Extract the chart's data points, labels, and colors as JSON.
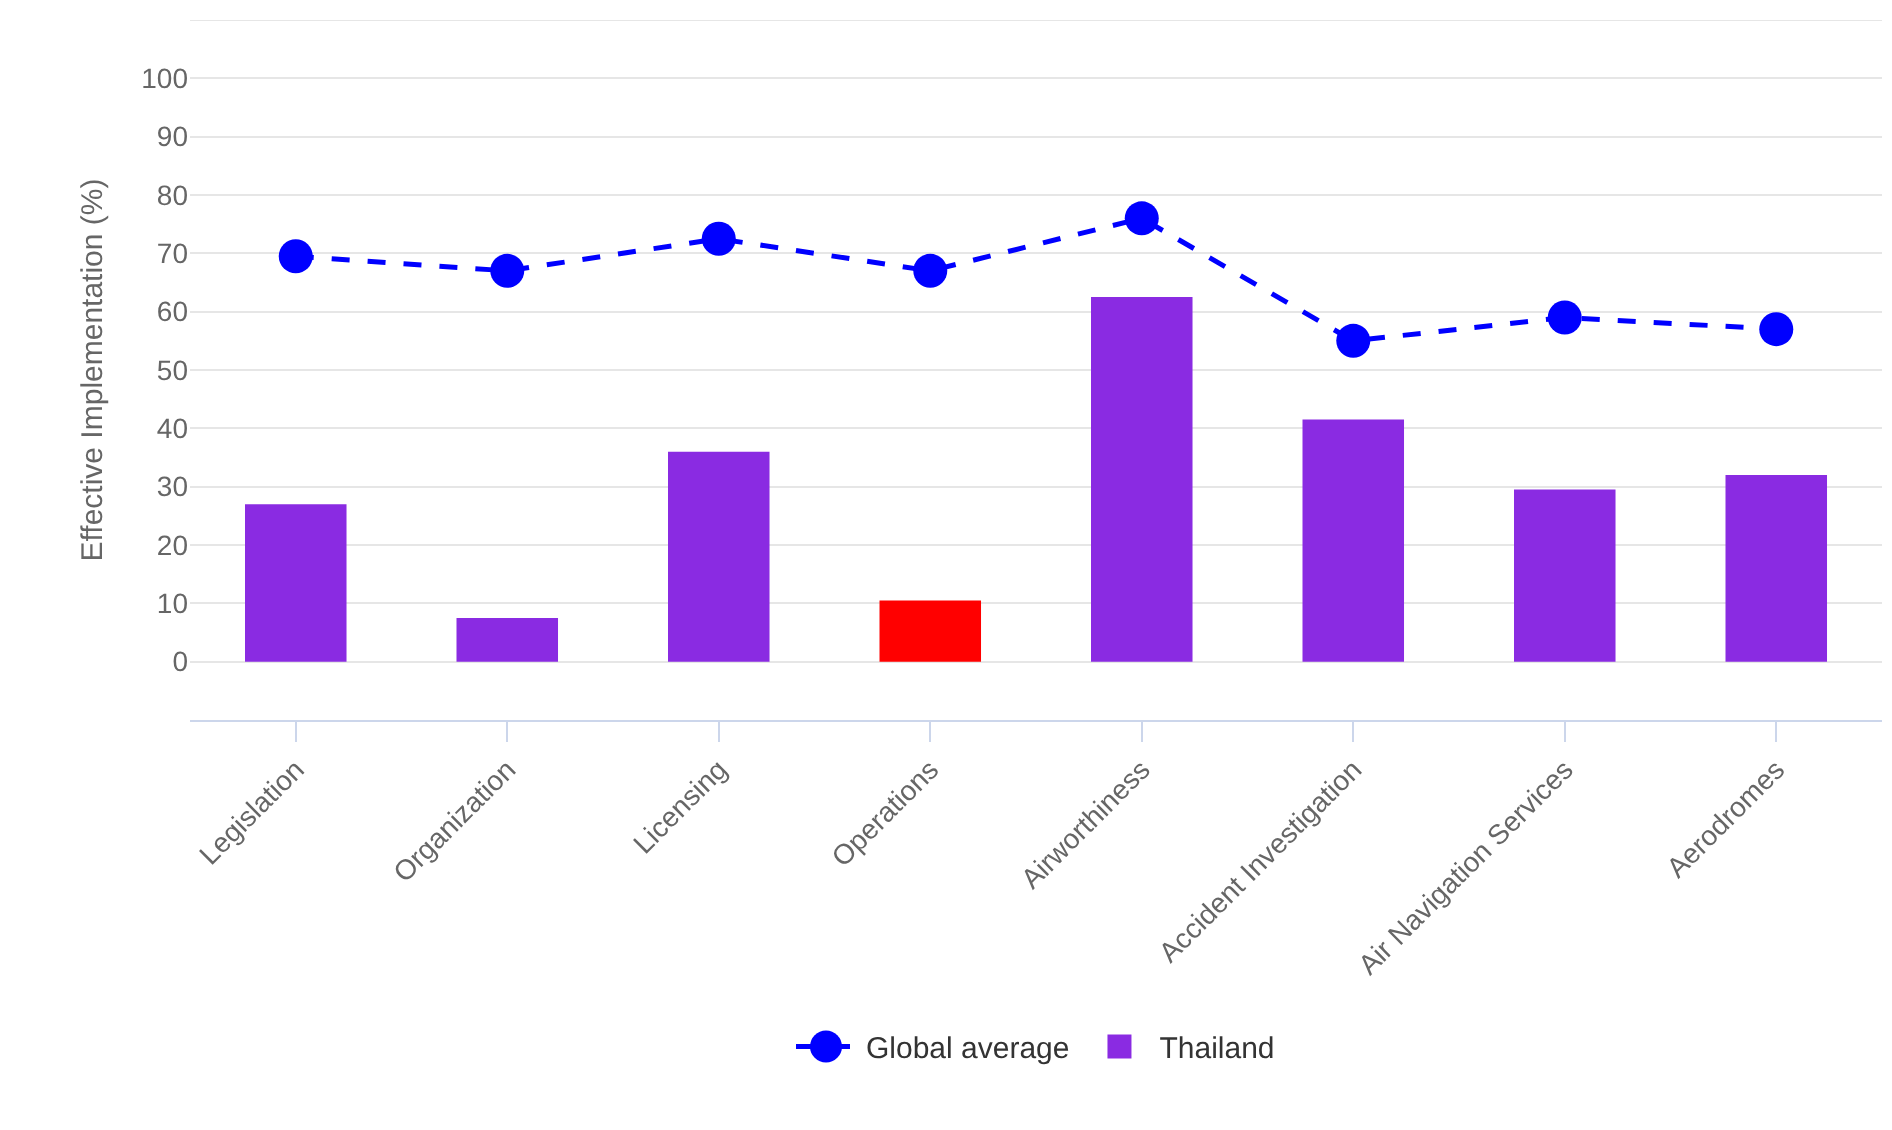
{
  "chart_data": {
    "type": "bar",
    "ylabel": "Effective Implementation (%)",
    "categories": [
      "Legislation",
      "Organization",
      "Licensing",
      "Operations",
      "Airworthiness",
      "Accident Investigation",
      "Air Navigation Services",
      "Aerodromes"
    ],
    "series": [
      {
        "name": "Global average",
        "type": "line",
        "color": "#0000ff",
        "line_style": "dashed",
        "marker": "circle",
        "values": [
          69.5,
          67,
          72.5,
          67,
          76,
          55,
          59,
          57
        ]
      },
      {
        "name": "Thailand",
        "color": "#8a2be2",
        "colors": [
          "#8a2be2",
          "#8a2be2",
          "#8a2be2",
          "#ff0000",
          "#8a2be2",
          "#8a2be2",
          "#8a2be2",
          "#8a2be2"
        ],
        "values": [
          27,
          7.5,
          36,
          10.5,
          62.5,
          41.5,
          29.5,
          32
        ]
      }
    ],
    "ylim": [
      -10,
      110
    ],
    "yticks": [
      0,
      10,
      20,
      30,
      40,
      50,
      60,
      70,
      80,
      90,
      100,
      {
        "value": 110,
        "label": null
      }
    ],
    "grid": "y",
    "legend": "bottom"
  }
}
